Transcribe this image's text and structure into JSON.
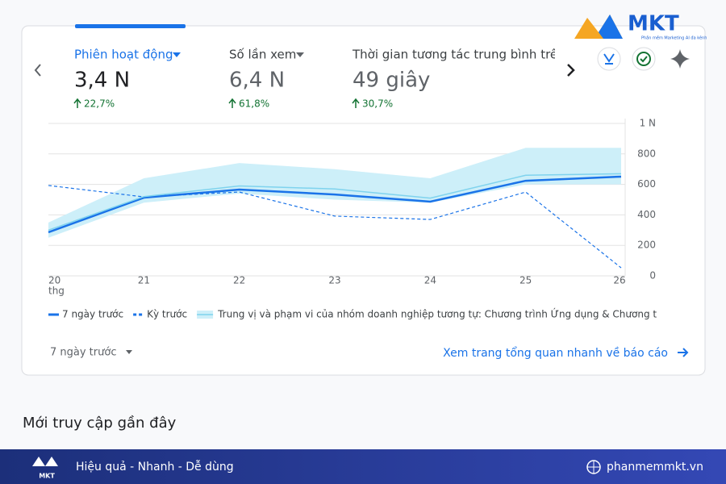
{
  "metrics": [
    {
      "label": "Phiên hoạt động",
      "value": "3,4 N",
      "change": "22,7%"
    },
    {
      "label": "Số lần xem",
      "value": "6,4 N",
      "change": "61,8%"
    },
    {
      "label": "Thời gian tương tác trung bình trên mỗi",
      "value": "49 giây",
      "change": "30,7%"
    }
  ],
  "chart_data": {
    "type": "line",
    "categories": [
      "20",
      "21",
      "22",
      "23",
      "24",
      "25",
      "26"
    ],
    "x_sub_label": "thg",
    "ylim": [
      0,
      1000
    ],
    "yticks": [
      0,
      200,
      400,
      600,
      800,
      {
        "value": 1000,
        "label": "1 N"
      }
    ],
    "grid": true,
    "series": [
      {
        "name": "7 ngày trước",
        "color": "#1a73e8",
        "style": "solid",
        "values": [
          286,
          513,
          566,
          534,
          487,
          624,
          651
        ]
      },
      {
        "name": "Kỳ trước",
        "color": "#1a73e8",
        "style": "dashed",
        "values": [
          593,
          518,
          550,
          392,
          370,
          550,
          53
        ]
      },
      {
        "name": "Trung vị và phạm vi của nhóm doanh nghiệp tương tự: Chương trình Ứng dụng & Chương trình P",
        "color": "#7fd3ee",
        "band_color": "#cdeff9",
        "style": "band",
        "values": [
          300,
          520,
          590,
          570,
          510,
          660,
          670
        ],
        "low": [
          250,
          480,
          540,
          500,
          480,
          600,
          600
        ],
        "high": [
          350,
          640,
          740,
          700,
          640,
          840,
          840
        ]
      }
    ]
  },
  "period": "7 ngày trước",
  "link": "Xem trang tổng quan nhanh về báo cáo",
  "section_title": "Mới truy cập gần đây",
  "brand": {
    "logo": "MKT",
    "tagline": "Phần mềm Marketing AI đa kênh",
    "slogan": "Hiệu quả - Nhanh - Dễ dùng",
    "website": "phanmemmkt.vn"
  }
}
